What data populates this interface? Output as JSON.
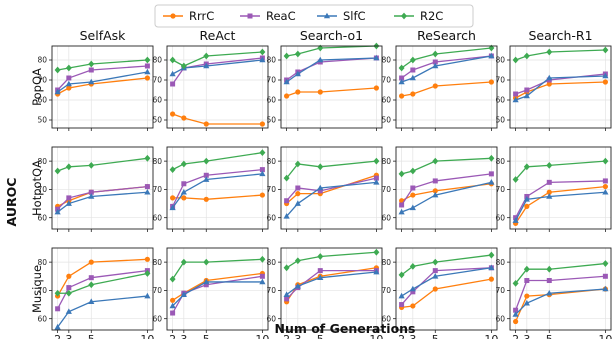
{
  "figure": {
    "ylabel": "AUROC",
    "xlabel": "Num of Generations"
  },
  "chart_data": {
    "type": "line",
    "columns": [
      "SelfAsk",
      "ReAct",
      "Search-o1",
      "ReSearch",
      "Search-R1"
    ],
    "rows": [
      "PopQA",
      "HotpotQA",
      "Musique"
    ],
    "x": [
      2,
      3,
      5,
      10
    ],
    "x_ticks": [
      2,
      3,
      5,
      10
    ],
    "grid": true,
    "legend_position": "top-center",
    "series_styles": [
      {
        "name": "RrrC",
        "color": "#ff7f0e",
        "marker": "circle"
      },
      {
        "name": "ReaC",
        "color": "#9b59b6",
        "marker": "square"
      },
      {
        "name": "SlfC",
        "color": "#3b78b8",
        "marker": "triangle"
      },
      {
        "name": "R2C",
        "color": "#3eaa52",
        "marker": "diamond"
      }
    ],
    "row_axes": [
      {
        "ylim": [
          46,
          87
        ],
        "yticks": [
          50,
          60,
          70,
          80
        ]
      },
      {
        "ylim": [
          56,
          85
        ],
        "yticks": [
          60,
          70,
          80
        ]
      },
      {
        "ylim": [
          56,
          85
        ],
        "yticks": [
          60,
          70,
          80
        ]
      }
    ],
    "panels": [
      [
        {
          "RrrC": [
            63,
            66,
            68,
            71
          ],
          "ReaC": [
            65,
            71,
            75,
            77
          ],
          "SlfC": [
            64,
            68,
            69,
            74
          ],
          "R2C": [
            75,
            76,
            78,
            80
          ]
        },
        {
          "RrrC": [
            53,
            51,
            48,
            48
          ],
          "ReaC": [
            68,
            76,
            78,
            81
          ],
          "SlfC": [
            73,
            76,
            77,
            80
          ],
          "R2C": [
            80,
            77,
            82,
            84
          ]
        },
        {
          "RrrC": [
            62,
            64,
            64,
            66
          ],
          "ReaC": [
            70,
            74,
            79,
            81
          ],
          "SlfC": [
            69,
            73,
            80,
            81
          ],
          "R2C": [
            82,
            83,
            86,
            87
          ]
        },
        {
          "RrrC": [
            62,
            63,
            67,
            69
          ],
          "ReaC": [
            71,
            75,
            79,
            82
          ],
          "SlfC": [
            69,
            71,
            77,
            82
          ],
          "R2C": [
            76,
            80,
            83,
            86
          ]
        },
        {
          "RrrC": [
            61,
            64,
            68,
            69
          ],
          "ReaC": [
            63,
            65,
            70,
            73
          ],
          "SlfC": [
            60,
            62,
            71,
            72
          ],
          "R2C": [
            80,
            82,
            84,
            85
          ]
        }
      ],
      [
        {
          "RrrC": [
            64,
            66,
            69,
            71
          ],
          "ReaC": [
            63,
            67,
            69,
            71
          ],
          "SlfC": [
            62,
            65,
            67.5,
            69
          ],
          "R2C": [
            76.5,
            78,
            78.5,
            81
          ]
        },
        {
          "RrrC": [
            67,
            67,
            66.5,
            68
          ],
          "ReaC": [
            64,
            72,
            75,
            77
          ],
          "SlfC": [
            63.5,
            69,
            73.5,
            75.5
          ],
          "R2C": [
            77,
            79,
            80,
            83
          ]
        },
        {
          "RrrC": [
            65,
            68.5,
            68.5,
            75
          ],
          "ReaC": [
            66,
            70.5,
            69.5,
            74
          ],
          "SlfC": [
            60.5,
            65,
            70.5,
            72.5
          ],
          "R2C": [
            74,
            79,
            78,
            80
          ]
        },
        {
          "RrrC": [
            66,
            68,
            69.5,
            72
          ],
          "ReaC": [
            64.5,
            70.5,
            73,
            75.5
          ],
          "SlfC": [
            62,
            63.5,
            68,
            72.5
          ],
          "R2C": [
            75.5,
            76.5,
            80,
            81
          ]
        },
        {
          "RrrC": [
            58,
            64,
            69,
            71
          ],
          "ReaC": [
            60,
            67.5,
            72.5,
            73
          ],
          "SlfC": [
            59,
            66.5,
            67.5,
            69
          ],
          "R2C": [
            73.5,
            78,
            78.5,
            80
          ]
        }
      ],
      [
        {
          "RrrC": [
            68,
            75,
            80,
            81
          ],
          "ReaC": [
            63.5,
            71,
            74.5,
            77
          ],
          "SlfC": [
            57,
            62.5,
            66,
            68
          ],
          "R2C": [
            69,
            69,
            72,
            76
          ]
        },
        {
          "RrrC": [
            66.5,
            69,
            73.5,
            76
          ],
          "ReaC": [
            62,
            69,
            72,
            75
          ],
          "SlfC": [
            64.5,
            68.5,
            73,
            73
          ],
          "R2C": [
            74,
            80,
            80,
            81
          ]
        },
        {
          "RrrC": [
            66,
            72,
            75,
            78
          ],
          "ReaC": [
            67,
            71,
            77,
            77
          ],
          "SlfC": [
            68.5,
            71.5,
            74.5,
            76.5
          ],
          "R2C": [
            78,
            80.5,
            82,
            83.5
          ]
        },
        {
          "RrrC": [
            64,
            64.5,
            70.5,
            74
          ],
          "ReaC": [
            65,
            69.5,
            77,
            78
          ],
          "SlfC": [
            68,
            70.5,
            75,
            78
          ],
          "R2C": [
            75.5,
            78.5,
            80,
            82.5
          ]
        },
        {
          "RrrC": [
            59,
            68,
            68.5,
            70.5
          ],
          "ReaC": [
            63,
            73.5,
            73.5,
            75
          ],
          "SlfC": [
            61.5,
            65.5,
            69,
            70.5
          ],
          "R2C": [
            72.5,
            77.5,
            77.5,
            79.5
          ]
        }
      ]
    ]
  }
}
